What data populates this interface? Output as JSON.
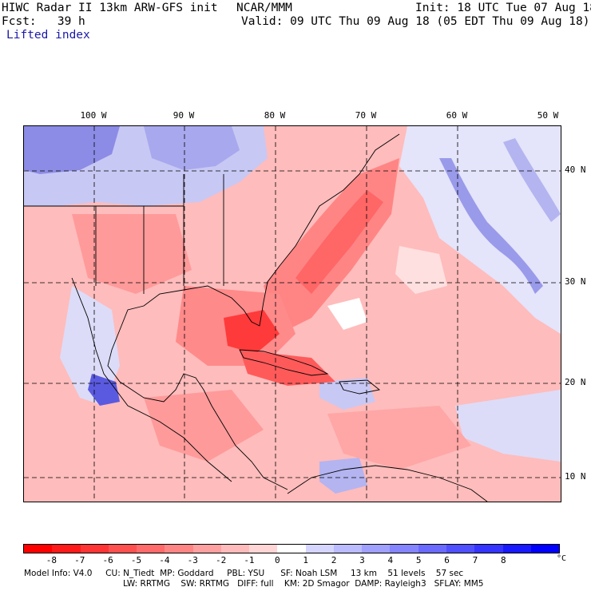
{
  "header": {
    "title": "HIWC Radar II 13km ARW-GFS init",
    "org": "NCAR/MMM",
    "init": "Init: 18 UTC Tue 07 Aug 18",
    "fcst": "Fcst:   39 h",
    "valid": "Valid: 09 UTC Thu 09 Aug 18 (05 EDT Thu 09 Aug 18)",
    "field": "Lifted index"
  },
  "map": {
    "lon_labels": [
      "100 W",
      "90 W",
      "80 W",
      "70 W",
      "60 W",
      "50 W"
    ],
    "lat_labels": [
      "40 N",
      "30 N",
      "20 N",
      "10 N"
    ]
  },
  "colorbar": {
    "tick_labels": [
      "-8",
      "-7",
      "-6",
      "-5",
      "-4",
      "-3",
      "-2",
      "-1",
      "0",
      "1",
      "2",
      "3",
      "4",
      "5",
      "6",
      "7",
      "8"
    ],
    "unit": "°C",
    "colors": [
      "#ff0000",
      "#ff1a1a",
      "#ff3535",
      "#ff5050",
      "#ff6a6a",
      "#ff8585",
      "#ffa0a0",
      "#ffbbbb",
      "#ffd5d5",
      "#ffffff",
      "#d5d5ff",
      "#bbbbff",
      "#a0a0ff",
      "#8585ff",
      "#6a6aff",
      "#5050ff",
      "#3535ff",
      "#1a1aff",
      "#0000ff"
    ]
  },
  "model_info": {
    "line1": "Model Info: V4.0     CU: N_Tiedt  MP: Goddard     PBL: YSU      SF: Noah LSM     13 km    51 levels    57 sec",
    "line2": "LW: RRTMG    SW: RRTMG   DIFF: full    KM: 2D Smagor  DAMP: Rayleigh3   SFLAY: MM5"
  }
}
